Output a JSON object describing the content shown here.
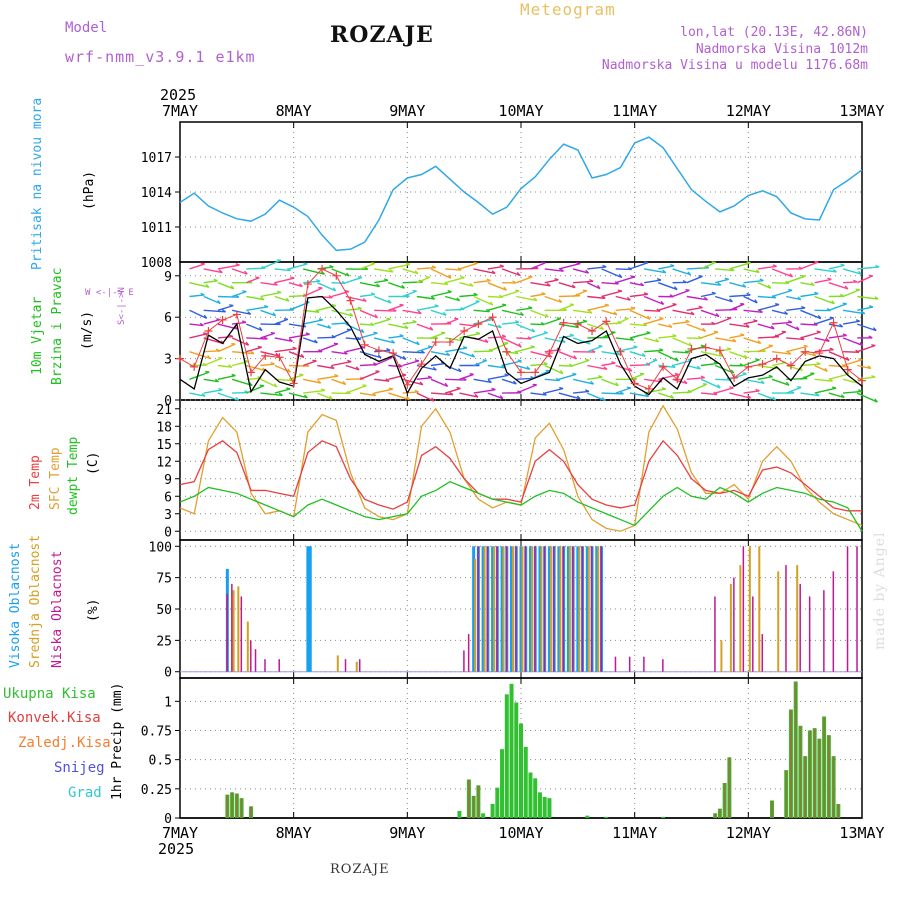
{
  "header": {
    "model_label": "Model",
    "model_name": "wrf-nmm_v3.9.1 e1km",
    "station": "ROZAJE",
    "product": "Meteogram",
    "coords": "lon,lat (20.13E, 42.86N)",
    "elevation": "Nadmorska Visina 1012m",
    "model_elevation": "Nadmorska Visina u modelu 1176.68m"
  },
  "footer": {
    "station": "ROZAJE",
    "credit": "made by Angel"
  },
  "colors": {
    "pressure": "#30a8e8",
    "wind_speed": "#000000",
    "gust": "#e84040",
    "t2m": "#e84040",
    "tsfc": "#e0a030",
    "dewpt": "#20c020",
    "high_cloud": "#18a0f0",
    "mid_cloud": "#d4a020",
    "low_cloud": "#c01890",
    "total_precip": "#30c030",
    "conv_precip": "#e04040",
    "frz_precip": "#f08030",
    "snow": "#5050e0",
    "graupel": "#30c8c8"
  },
  "chart_data": [
    {
      "id": "pressure",
      "type": "line",
      "year": "2025",
      "x_ticks": [
        "7MAY",
        "8MAY",
        "9MAY",
        "10MAY",
        "11MAY",
        "12MAY",
        "13MAY"
      ],
      "ylabel_name": "Pritisak na nivou mora",
      "ylabel_unit": "(hPa)",
      "ylim": [
        1008,
        1020
      ],
      "y_ticks": [
        1011,
        1014,
        1017
      ],
      "x_hours": [
        0,
        3,
        6,
        9,
        12,
        15,
        18,
        21,
        24,
        27,
        30,
        33,
        36,
        39,
        42,
        45,
        48,
        51,
        54,
        57,
        60,
        63,
        66,
        69,
        72,
        75,
        78,
        81,
        84,
        87,
        90,
        93,
        96,
        99,
        102,
        105,
        108,
        111,
        114,
        117,
        120,
        123,
        126,
        129,
        132,
        135,
        138,
        141,
        144
      ],
      "series": [
        {
          "values": [
            1013.1,
            1013.9,
            1012.8,
            1012.2,
            1011.7,
            1011.5,
            1012.1,
            1013.3,
            1012.7,
            1011.9,
            1010.3,
            1009.0,
            1009.1,
            1009.7,
            1011.6,
            1014.2,
            1015.2,
            1015.5,
            1016.2,
            1015.1,
            1014.0,
            1013.1,
            1012.1,
            1012.7,
            1014.3,
            1015.3,
            1016.8,
            1018.1,
            1017.6,
            1015.2,
            1015.5,
            1016.1,
            1018.2,
            1018.7,
            1017.8,
            1016.0,
            1014.2,
            1013.2,
            1012.3,
            1012.8,
            1013.7,
            1014.1,
            1013.6,
            1012.2,
            1011.7,
            1011.6,
            1014.2,
            1015.0,
            1015.9
          ]
        }
      ]
    },
    {
      "id": "wind",
      "type": "line",
      "ylabel_name1": "10m Vjetar",
      "ylabel_name2": "Brzina i Pravac",
      "ylabel_unit": "(m/s)",
      "compass": "W <-|-> E",
      "compass_v": "S<-|->N",
      "ylim": [
        0,
        10
      ],
      "y_ticks": [
        0,
        3,
        6,
        9
      ],
      "x_hours": [
        0,
        3,
        6,
        9,
        12,
        15,
        18,
        21,
        24,
        27,
        30,
        33,
        36,
        39,
        42,
        45,
        48,
        51,
        54,
        57,
        60,
        63,
        66,
        69,
        72,
        75,
        78,
        81,
        84,
        87,
        90,
        93,
        96,
        99,
        102,
        105,
        108,
        111,
        114,
        117,
        120,
        123,
        126,
        129,
        132,
        135,
        138,
        141,
        144
      ],
      "series": [
        {
          "values": [
            1.5,
            0.8,
            4.7,
            4.1,
            5.5,
            0.6,
            2.2,
            1.3,
            1.0,
            7.4,
            7.5,
            6.5,
            5.3,
            3.3,
            2.8,
            3.2,
            0.5,
            2.3,
            3.2,
            2.3,
            4.6,
            4.4,
            5.0,
            2.0,
            1.2,
            1.6,
            2.0,
            4.6,
            4.1,
            4.3,
            5.0,
            2.6,
            1.0,
            0.4,
            1.6,
            0.8,
            3.0,
            3.3,
            2.6,
            1.0,
            1.6,
            1.8,
            2.4,
            1.4,
            2.8,
            3.2,
            3.0,
            1.8,
            1.0
          ]
        },
        {
          "values": [
            3.0,
            2.4,
            5.0,
            5.8,
            6.2,
            2.0,
            3.2,
            3.1,
            1.2,
            8.4,
            9.5,
            9.0,
            7.2,
            4.0,
            3.6,
            3.4,
            1.1,
            2.6,
            4.2,
            4.2,
            5.0,
            5.5,
            6.0,
            3.5,
            2.0,
            2.0,
            3.4,
            5.6,
            5.5,
            5.0,
            5.7,
            3.5,
            1.2,
            0.8,
            2.4,
            1.5,
            3.7,
            3.8,
            3.6,
            1.6,
            2.4,
            2.6,
            3.0,
            2.5,
            3.5,
            3.4,
            5.6,
            2.2,
            1.4
          ]
        }
      ]
    },
    {
      "id": "temperature",
      "type": "line",
      "ylabel_name1": "2m Temp",
      "ylabel_name2": "SFC Temp",
      "ylabel_name3": "dewpt Temp",
      "ylabel_unit": "(C)",
      "ylim": [
        -1.5,
        22.5
      ],
      "y_ticks": [
        0,
        3,
        6,
        9,
        12,
        15,
        18,
        21
      ],
      "x_hours": [
        0,
        3,
        6,
        9,
        12,
        15,
        18,
        21,
        24,
        27,
        30,
        33,
        36,
        39,
        42,
        45,
        48,
        51,
        54,
        57,
        60,
        63,
        66,
        69,
        72,
        75,
        78,
        81,
        84,
        87,
        90,
        93,
        96,
        99,
        102,
        105,
        108,
        111,
        114,
        117,
        120,
        123,
        126,
        129,
        132,
        135,
        138,
        141,
        144
      ],
      "series": [
        {
          "values": [
            8.0,
            8.5,
            14.0,
            15.5,
            13.5,
            7.0,
            7.0,
            6.5,
            6.0,
            13.5,
            15.5,
            14.5,
            9.0,
            5.5,
            4.5,
            3.8,
            5.0,
            13.0,
            14.5,
            12.5,
            9.0,
            6.5,
            5.5,
            5.5,
            5.0,
            12.0,
            14.0,
            12.0,
            8.0,
            5.5,
            4.5,
            4.0,
            4.5,
            12.0,
            15.5,
            13.0,
            9.0,
            7.0,
            6.5,
            7.0,
            6.0,
            10.5,
            11.0,
            10.0,
            8.0,
            6.0,
            4.0,
            3.5,
            3.5
          ]
        },
        {
          "values": [
            4.0,
            3.0,
            15.5,
            19.5,
            17.0,
            6.5,
            3.0,
            3.5,
            2.5,
            17.0,
            20.0,
            19.0,
            10.0,
            4.0,
            2.5,
            2.0,
            3.0,
            18.0,
            21.0,
            17.0,
            9.0,
            5.5,
            4.0,
            5.0,
            4.5,
            16.0,
            18.5,
            14.0,
            6.0,
            2.0,
            0.5,
            0.0,
            1.0,
            17.0,
            21.5,
            17.5,
            10.0,
            6.5,
            6.5,
            8.0,
            5.5,
            12.0,
            14.5,
            12.0,
            7.5,
            5.0,
            3.0,
            2.0,
            1.0
          ]
        },
        {
          "values": [
            5.0,
            6.0,
            7.5,
            7.0,
            6.5,
            5.5,
            4.5,
            3.5,
            2.5,
            4.5,
            5.5,
            4.5,
            3.5,
            2.5,
            2.0,
            2.5,
            3.0,
            6.0,
            7.0,
            8.5,
            7.5,
            6.5,
            5.5,
            5.0,
            4.5,
            6.0,
            7.0,
            6.5,
            5.0,
            4.0,
            3.0,
            2.0,
            1.0,
            3.5,
            6.0,
            7.5,
            6.0,
            5.5,
            7.5,
            6.5,
            5.0,
            6.5,
            7.5,
            7.0,
            6.5,
            5.5,
            5.0,
            4.0,
            0.0
          ]
        }
      ]
    },
    {
      "id": "clouds",
      "type": "bar",
      "ylabel_name1": "Visoka Oblacnost",
      "ylabel_name2": "Srednja Oblacnost",
      "ylabel_name3": "Niska Oblacnost",
      "ylabel_unit": "(%)",
      "ylim": [
        -5,
        105
      ],
      "y_ticks": [
        0,
        25,
        50,
        75,
        100
      ],
      "y_tick_labels": [
        "0",
        "25",
        "50",
        "75",
        "100"
      ],
      "high": [
        [
          10,
          82
        ],
        [
          27,
          100
        ],
        [
          27.5,
          100
        ],
        [
          62,
          100
        ],
        [
          63,
          100
        ],
        [
          64,
          100
        ],
        [
          65,
          100
        ],
        [
          66,
          100
        ],
        [
          67,
          100
        ],
        [
          68,
          100
        ],
        [
          69,
          100
        ],
        [
          70,
          100
        ],
        [
          71,
          100
        ],
        [
          72,
          100
        ],
        [
          73,
          100
        ],
        [
          74,
          100
        ],
        [
          75,
          100
        ],
        [
          76,
          100
        ],
        [
          77,
          100
        ],
        [
          78,
          100
        ],
        [
          79,
          100
        ],
        [
          80,
          100
        ],
        [
          81,
          100
        ],
        [
          82,
          100
        ],
        [
          83,
          100
        ],
        [
          84,
          100
        ],
        [
          85,
          100
        ],
        [
          86,
          100
        ],
        [
          87,
          100
        ],
        [
          88,
          100
        ],
        [
          89,
          100
        ]
      ],
      "mid": [
        [
          11,
          65
        ],
        [
          12,
          68
        ],
        [
          14,
          40
        ],
        [
          33,
          13
        ],
        [
          37,
          8
        ],
        [
          62,
          90
        ],
        [
          64,
          100
        ],
        [
          66,
          100
        ],
        [
          68,
          100
        ],
        [
          70,
          100
        ],
        [
          72,
          100
        ],
        [
          74,
          100
        ],
        [
          76,
          100
        ],
        [
          78,
          100
        ],
        [
          80,
          100
        ],
        [
          82,
          100
        ],
        [
          84,
          100
        ],
        [
          86,
          100
        ],
        [
          88,
          100
        ],
        [
          114,
          25
        ],
        [
          116,
          70
        ],
        [
          118,
          85
        ],
        [
          120,
          100
        ],
        [
          122,
          100
        ],
        [
          126,
          80
        ],
        [
          130,
          85
        ]
      ],
      "low": [
        [
          10,
          62
        ],
        [
          11,
          70
        ],
        [
          13,
          60
        ],
        [
          15,
          25
        ],
        [
          16,
          18
        ],
        [
          18,
          10
        ],
        [
          21,
          10
        ],
        [
          35,
          10
        ],
        [
          38,
          10
        ],
        [
          60,
          17
        ],
        [
          61,
          30
        ],
        [
          63,
          100
        ],
        [
          65,
          100
        ],
        [
          67,
          100
        ],
        [
          69,
          100
        ],
        [
          71,
          100
        ],
        [
          73,
          100
        ],
        [
          75,
          100
        ],
        [
          77,
          100
        ],
        [
          79,
          100
        ],
        [
          81,
          100
        ],
        [
          83,
          100
        ],
        [
          85,
          100
        ],
        [
          87,
          100
        ],
        [
          89,
          100
        ],
        [
          92,
          12
        ],
        [
          95,
          12
        ],
        [
          98,
          12
        ],
        [
          102,
          10
        ],
        [
          113,
          60
        ],
        [
          117,
          75
        ],
        [
          119,
          100
        ],
        [
          121,
          60
        ],
        [
          123,
          30
        ],
        [
          128,
          85
        ],
        [
          131,
          70
        ],
        [
          133,
          60
        ],
        [
          136,
          65
        ],
        [
          138,
          80
        ],
        [
          141,
          100
        ],
        [
          143,
          100
        ]
      ]
    },
    {
      "id": "precip",
      "type": "bar",
      "ylabel_name": "1hr Precip (mm)",
      "legend": [
        "Ukupna Kisa",
        "Konvek.Kisa",
        "Zaledj.Kisa",
        "Snijeg",
        "Grad"
      ],
      "ylim": [
        0,
        1.2
      ],
      "y_ticks": [
        0,
        0.25,
        0.5,
        0.75,
        1
      ],
      "y_tick_labels": [
        "0",
        "0.25",
        "0.5",
        "0.75",
        "1"
      ],
      "x_ticks_bottom": [
        "7MAY",
        "8MAY",
        "9MAY",
        "10MAY",
        "11MAY",
        "12MAY",
        "13MAY"
      ],
      "year_bottom": "2025",
      "total": [
        [
          10,
          0.2
        ],
        [
          11,
          0.22
        ],
        [
          12,
          0.21
        ],
        [
          13,
          0.17
        ],
        [
          15,
          0.1
        ],
        [
          59,
          0.06
        ],
        [
          61,
          0.33
        ],
        [
          62,
          0.19
        ],
        [
          63,
          0.28
        ],
        [
          64,
          0.04
        ],
        [
          66,
          0.12
        ],
        [
          67,
          0.26
        ],
        [
          68,
          0.59
        ],
        [
          69,
          1.06
        ],
        [
          70,
          1.15
        ],
        [
          71,
          0.99
        ],
        [
          72,
          0.81
        ],
        [
          73,
          0.61
        ],
        [
          74,
          0.39
        ],
        [
          75,
          0.34
        ],
        [
          76,
          0.22
        ],
        [
          77,
          0.18
        ],
        [
          78,
          0.17
        ],
        [
          86,
          0.02
        ],
        [
          90,
          0.01
        ],
        [
          102,
          0.01
        ],
        [
          113,
          0.04
        ],
        [
          114,
          0.08
        ],
        [
          115,
          0.3
        ],
        [
          116,
          0.52
        ],
        [
          125,
          0.15
        ],
        [
          128,
          0.41
        ],
        [
          129,
          0.93
        ],
        [
          130,
          1.17
        ],
        [
          131,
          0.79
        ],
        [
          132,
          0.53
        ],
        [
          133,
          0.75
        ],
        [
          134,
          0.77
        ],
        [
          135,
          0.68
        ],
        [
          136,
          0.87
        ],
        [
          137,
          0.71
        ],
        [
          138,
          0.53
        ],
        [
          139,
          0.12
        ]
      ],
      "conv": [
        [
          10,
          0.2
        ],
        [
          11,
          0.22
        ],
        [
          12,
          0.21
        ],
        [
          13,
          0.17
        ],
        [
          15,
          0.1
        ],
        [
          61,
          0.33
        ],
        [
          62,
          0.19
        ],
        [
          63,
          0.28
        ],
        [
          113,
          0.04
        ],
        [
          114,
          0.08
        ],
        [
          115,
          0.3
        ],
        [
          116,
          0.52
        ],
        [
          125,
          0.15
        ],
        [
          128,
          0.41
        ],
        [
          129,
          0.93
        ],
        [
          130,
          1.17
        ],
        [
          131,
          0.79
        ],
        [
          132,
          0.53
        ],
        [
          133,
          0.75
        ],
        [
          134,
          0.77
        ],
        [
          135,
          0.68
        ],
        [
          136,
          0.87
        ],
        [
          137,
          0.71
        ],
        [
          138,
          0.53
        ],
        [
          139,
          0.12
        ]
      ]
    }
  ]
}
